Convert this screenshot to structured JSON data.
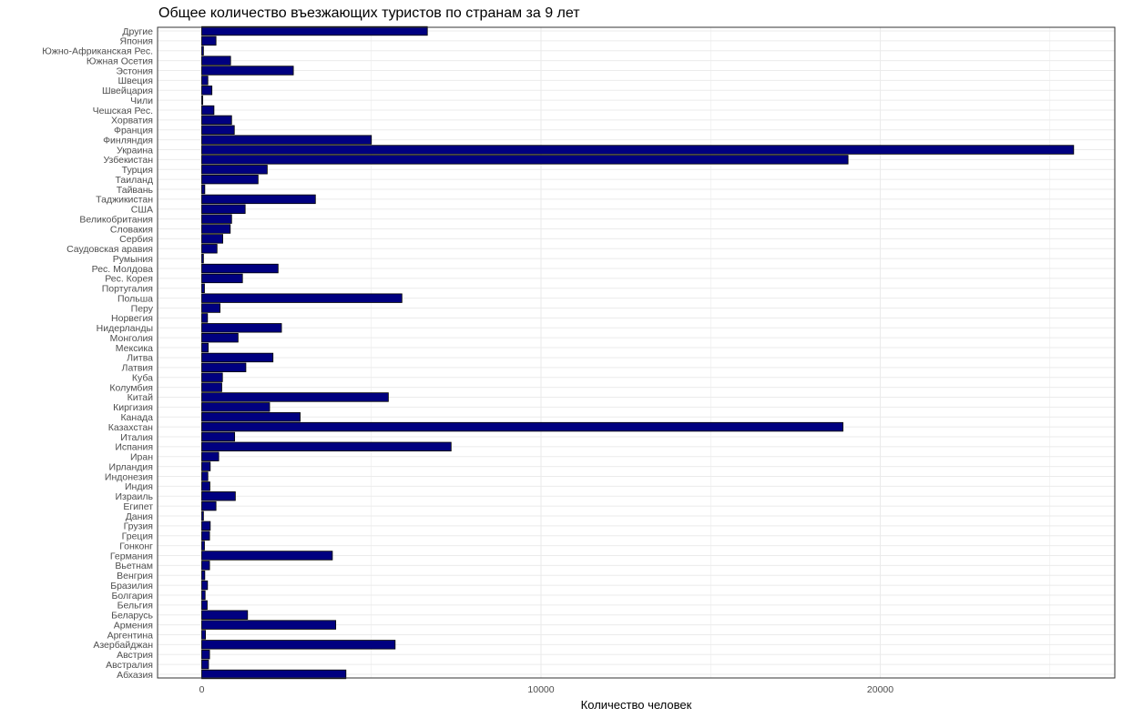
{
  "chart_data": {
    "type": "bar",
    "orientation": "horizontal",
    "title": "Общее количество въезжающих туристов по странам за 9 лет",
    "xlabel": "Количество человек",
    "ylabel": "",
    "xlim": [
      0,
      26000
    ],
    "xticks": [
      0,
      10000,
      20000
    ],
    "xtick_labels": [
      "0",
      "10000",
      "20000"
    ],
    "grid": true,
    "legend": "none",
    "colors": {
      "bar_fill": "#000080",
      "bar_stroke": "#000000",
      "grid": "#ebebeb",
      "panel_border": "#333333"
    },
    "categories": [
      "Абхазия",
      "Австралия",
      "Австрия",
      "Азербайджан",
      "Аргентина",
      "Армения",
      "Беларусь",
      "Бельгия",
      "Болгария",
      "Бразилия",
      "Венгрия",
      "Вьетнам",
      "Германия",
      "Гонконг",
      "Греция",
      "Грузия",
      "Дания",
      "Египет",
      "Израиль",
      "Индия",
      "Индонезия",
      "Ирландия",
      "Иран",
      "Испания",
      "Италия",
      "Казахстан",
      "Канада",
      "Киргизия",
      "Китай",
      "Колумбия",
      "Куба",
      "Латвия",
      "Литва",
      "Мексика",
      "Монголия",
      "Нидерланды",
      "Норвегия",
      "Перу",
      "Польша",
      "Португалия",
      "Рес. Корея",
      "Рес. Молдова",
      "Румыния",
      "Саудовская аравия",
      "Сербия",
      "Словакия",
      "Великобритания",
      "США",
      "Таджикистан",
      "Тайвань",
      "Таиланд",
      "Турция",
      "Узбекистан",
      "Украина",
      "Финляндия",
      "Франция",
      "Хорватия",
      "Чешская Рес.",
      "Чили",
      "Швейцария",
      "Швеция",
      "Эстония",
      "Южная Осетия",
      "Южно-Африканская Рес.",
      "Япония",
      "Другие"
    ],
    "values": [
      4250,
      200,
      230,
      5700,
      110,
      3950,
      1350,
      160,
      100,
      170,
      90,
      230,
      3850,
      80,
      230,
      250,
      50,
      420,
      990,
      240,
      180,
      250,
      500,
      7350,
      970,
      18900,
      2900,
      2000,
      5500,
      590,
      610,
      1300,
      2100,
      190,
      1070,
      2350,
      170,
      540,
      5900,
      80,
      1200,
      2250,
      50,
      450,
      620,
      840,
      880,
      1280,
      3350,
      90,
      1660,
      1930,
      19050,
      25700,
      5000,
      960,
      880,
      360,
      30,
      300,
      180,
      2700,
      850,
      50,
      420,
      6650
    ]
  }
}
